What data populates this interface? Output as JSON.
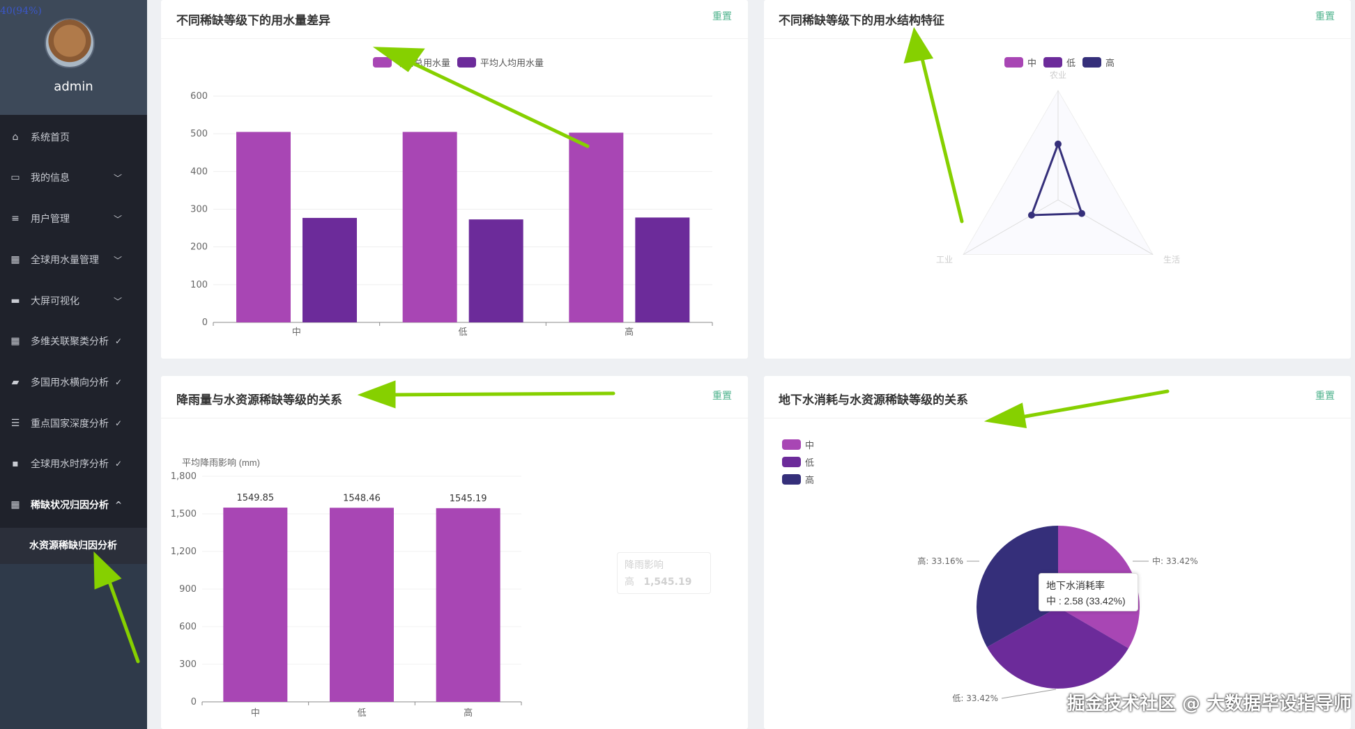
{
  "zoom_indicator": "40(94%)",
  "user": {
    "name": "admin"
  },
  "sidebar": {
    "items": [
      {
        "label": "系统首页",
        "icon": "home-icon",
        "chevron": ""
      },
      {
        "label": "我的信息",
        "icon": "card-icon",
        "chevron": "﹀"
      },
      {
        "label": "用户管理",
        "icon": "list-icon",
        "chevron": "﹀"
      },
      {
        "label": "全球用水量管理",
        "icon": "grid-icon",
        "chevron": "﹀"
      },
      {
        "label": "大屏可视化",
        "icon": "briefcase-icon",
        "chevron": "﹀"
      },
      {
        "label": "多维关联聚类分析",
        "icon": "grid-icon",
        "chevron": "✓"
      },
      {
        "label": "多国用水横向分析",
        "icon": "wallet-icon",
        "chevron": "✓"
      },
      {
        "label": "重点国家深度分析",
        "icon": "sliders-icon",
        "chevron": "✓"
      },
      {
        "label": "全球用水时序分析",
        "icon": "chat-icon",
        "chevron": "✓"
      },
      {
        "label": "稀缺状况归因分析",
        "icon": "grid-icon",
        "chevron": "^"
      }
    ],
    "sub_item": "水资源稀缺归因分析"
  },
  "reset_label": "重置",
  "colors": {
    "c1": "#a846b4",
    "c2": "#6c2b9a",
    "c3": "#352f7a",
    "accent": "#4fb38d",
    "arrow": "#86d000"
  },
  "charts": {
    "c1": {
      "title": "不同稀缺等级下的用水量差异"
    },
    "c2": {
      "title": "不同稀缺等级下的用水结构特征"
    },
    "c3": {
      "title": "降雨量与水资源稀缺等级的关系"
    },
    "c4": {
      "title": "地下水消耗与水资源稀缺等级的关系"
    }
  },
  "chart_data": [
    {
      "type": "bar",
      "categories": [
        "中",
        "低",
        "高"
      ],
      "series": [
        {
          "name": "平均总用水量",
          "values": [
            505,
            505,
            503
          ]
        },
        {
          "name": "平均人均用水量",
          "values": [
            277,
            273,
            278
          ]
        }
      ],
      "ylim": [
        0,
        600
      ],
      "yticks": [
        0,
        100,
        200,
        300,
        400,
        500,
        600
      ],
      "legend": "top-center",
      "grid": true
    },
    {
      "type": "radar",
      "indicators": [
        "农业",
        "工业",
        "生活"
      ],
      "series": [
        {
          "name": "中",
          "values": []
        },
        {
          "name": "低",
          "values": []
        },
        {
          "name": "高",
          "values": [
            51,
            28,
            25
          ]
        }
      ],
      "max": 100,
      "legend": "top-center"
    },
    {
      "type": "bar",
      "categories": [
        "中",
        "低",
        "高"
      ],
      "ylabel": "平均降雨影响 (mm)",
      "values": [
        1549.85,
        1548.46,
        1545.19
      ],
      "labels": [
        "1549.85",
        "1548.46",
        "1545.19"
      ],
      "ylim": [
        0,
        1800
      ],
      "yticks": [
        "0",
        "300",
        "600",
        "900",
        "1,200",
        "1,500",
        "1,800"
      ],
      "grid": true,
      "tooltip_ghost": {
        "title": "降雨影响",
        "series": "高",
        "value": "1,545.19"
      }
    },
    {
      "type": "pie",
      "categories": [
        "中",
        "低",
        "高"
      ],
      "values": [
        33.42,
        33.42,
        33.16
      ],
      "labels": [
        "中: 33.42%",
        "低: 33.42%",
        "高: 33.16%"
      ],
      "legend": "top-left",
      "tooltip": {
        "title": "地下水消耗率",
        "line": "中 : 2.58 (33.42%)"
      }
    }
  ],
  "watermark": "掘金技术社区 @ 大数据毕设指导师"
}
